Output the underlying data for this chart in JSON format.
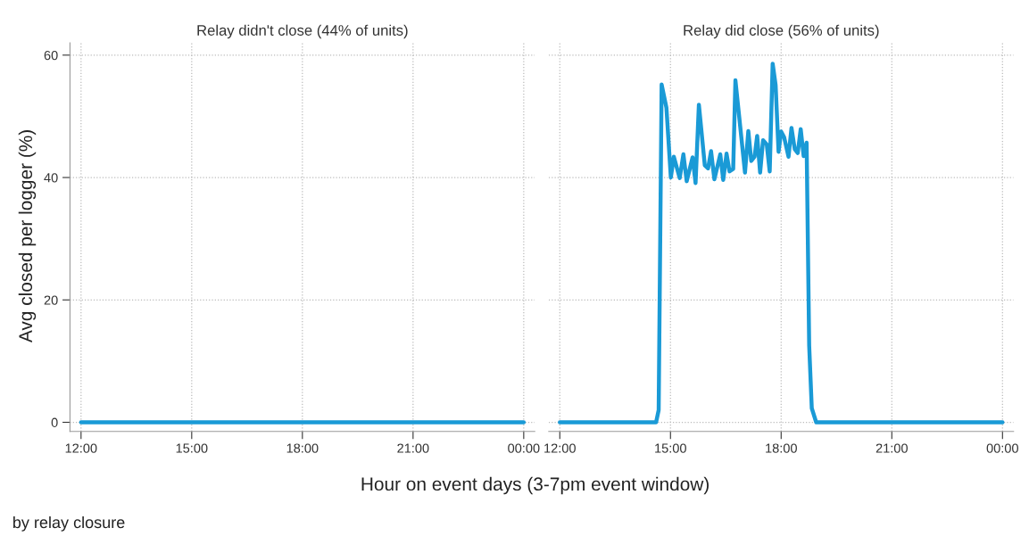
{
  "chart_data": [
    {
      "type": "line",
      "title": "Relay didn't close (44% of units)",
      "xlabel": "Hour on event days (3-7pm event window)",
      "ylabel": "Avg closed per logger (%)",
      "annotations": [
        "by relay closure"
      ],
      "x": [
        12,
        24
      ],
      "series": [
        {
          "color": "#1a9ad6",
          "values": [
            0,
            0
          ]
        }
      ],
      "xlim": [
        11.7,
        24.3
      ],
      "ylim": [
        -1.5,
        62
      ],
      "xticks": [
        {
          "value": 12,
          "label": "12:00"
        },
        {
          "value": 15,
          "label": "15:00"
        },
        {
          "value": 18,
          "label": "18:00"
        },
        {
          "value": 21,
          "label": "21:00"
        },
        {
          "value": 24,
          "label": "00:00"
        }
      ],
      "yticks": [
        0,
        20,
        40,
        60
      ],
      "grid": true,
      "legend": false
    },
    {
      "type": "line",
      "title": "Relay did close (56% of units)",
      "x": [
        12,
        14.61,
        14.68,
        14.76,
        14.89,
        15.01,
        15.09,
        15.25,
        15.35,
        15.44,
        15.6,
        15.68,
        15.77,
        15.93,
        16.02,
        16.1,
        16.19,
        16.35,
        16.43,
        16.52,
        16.6,
        16.7,
        16.76,
        17.02,
        17.11,
        17.19,
        17.28,
        17.35,
        17.43,
        17.51,
        17.61,
        17.69,
        17.77,
        17.85,
        17.93,
        18.0,
        18.08,
        18.2,
        18.28,
        18.37,
        18.45,
        18.53,
        18.61,
        18.69,
        18.76,
        18.83,
        18.95,
        24
      ],
      "series": [
        {
          "color": "#1a9ad6",
          "values": [
            0,
            0,
            2.0,
            55.2,
            51.4,
            40.0,
            43.4,
            39.9,
            43.8,
            39.4,
            43.3,
            39.1,
            51.9,
            42.0,
            41.5,
            44.3,
            39.7,
            43.8,
            39.6,
            43.9,
            41.0,
            41.4,
            55.9,
            40.8,
            47.6,
            42.7,
            43.4,
            46.8,
            40.8,
            46.1,
            45.4,
            41.0,
            58.6,
            55.1,
            44.2,
            47.5,
            46.6,
            43.4,
            48.1,
            44.6,
            44.0,
            47.9,
            43.5,
            45.7,
            12.5,
            2.3,
            0,
            0
          ]
        }
      ],
      "xlim": [
        11.7,
        24.3
      ],
      "ylim": [
        -1.5,
        62
      ],
      "xticks": [
        {
          "value": 12,
          "label": "12:00"
        },
        {
          "value": 15,
          "label": "15:00"
        },
        {
          "value": 18,
          "label": "18:00"
        },
        {
          "value": 21,
          "label": "21:00"
        },
        {
          "value": 24,
          "label": "00:00"
        }
      ],
      "yticks": [
        0,
        20,
        40,
        60
      ],
      "grid": true,
      "legend": false,
      "tick_labels": "x"
    }
  ]
}
